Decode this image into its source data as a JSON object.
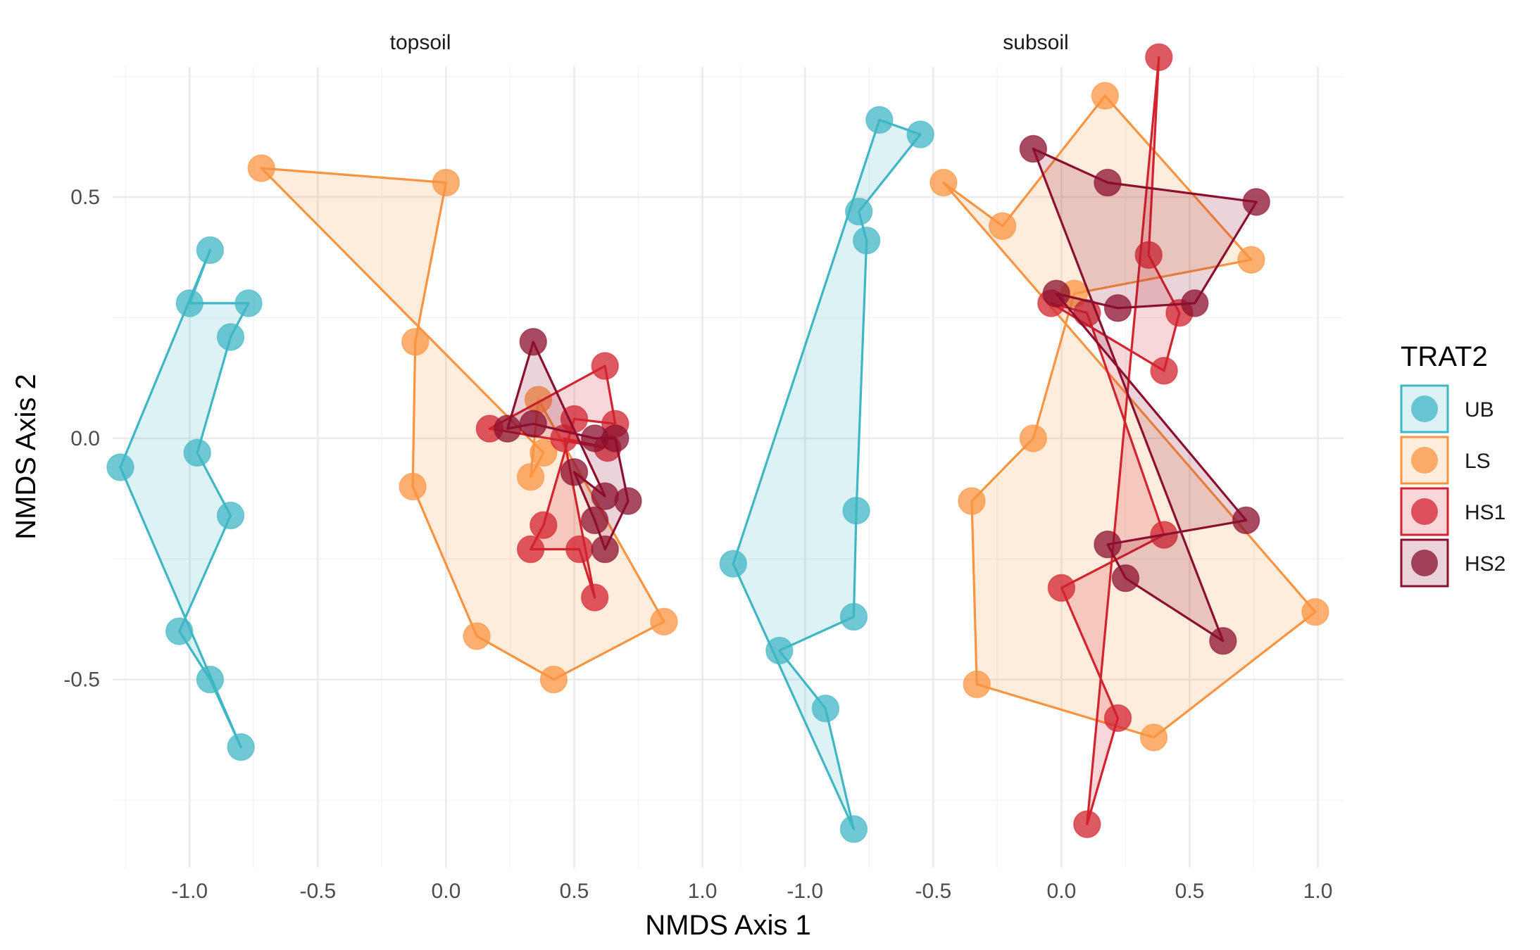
{
  "chart_data": {
    "type": "scatter",
    "xlabel": "NMDS Axis 1",
    "ylabel": "NMDS Axis 2",
    "xlim": [
      -1.3,
      1.1
    ],
    "ylim": [
      -0.89,
      0.77
    ],
    "x_ticks": [
      -1.0,
      -0.5,
      0.0,
      0.5,
      1.0
    ],
    "x_tick_labels": [
      "-1.0",
      "-0.5",
      "0.0",
      "0.5",
      "1.0"
    ],
    "y_ticks": [
      -0.5,
      0.0,
      0.5
    ],
    "y_tick_labels": [
      "-0.5",
      "0.0",
      "0.5"
    ],
    "grid": true,
    "legend": {
      "title": "TRAT2",
      "position": "right",
      "entries": [
        "UB",
        "LS",
        "HS1",
        "HS2"
      ]
    },
    "colors": {
      "UB": "#3fb6c4",
      "LS": "#fb9440",
      "HS1": "#d2232f",
      "HS2": "#8b0f2e"
    },
    "panels": [
      {
        "name": "topsoil",
        "series": [
          {
            "name": "UB",
            "points": [
              [
                -1.27,
                -0.06
              ],
              [
                -0.92,
                0.39
              ],
              [
                -1.0,
                0.28
              ],
              [
                -0.77,
                0.28
              ],
              [
                -0.84,
                0.21
              ],
              [
                -0.97,
                -0.03
              ],
              [
                -0.84,
                -0.16
              ],
              [
                -1.04,
                -0.4
              ],
              [
                -0.92,
                -0.5
              ],
              [
                -0.8,
                -0.64
              ]
            ]
          },
          {
            "name": "LS",
            "points": [
              [
                -0.72,
                0.56
              ],
              [
                0.0,
                0.53
              ],
              [
                -0.12,
                0.2
              ],
              [
                -0.13,
                -0.1
              ],
              [
                0.12,
                -0.41
              ],
              [
                0.42,
                -0.5
              ],
              [
                0.85,
                -0.38
              ],
              [
                0.36,
                0.08
              ],
              [
                0.33,
                -0.08
              ],
              [
                0.38,
                -0.03
              ]
            ]
          },
          {
            "name": "HS1",
            "points": [
              [
                0.17,
                0.02
              ],
              [
                0.62,
                0.15
              ],
              [
                0.66,
                0.03
              ],
              [
                0.5,
                0.04
              ],
              [
                0.38,
                -0.18
              ],
              [
                0.33,
                -0.23
              ],
              [
                0.52,
                -0.23
              ],
              [
                0.58,
                -0.33
              ],
              [
                0.46,
                0.0
              ],
              [
                0.63,
                -0.02
              ]
            ]
          },
          {
            "name": "HS2",
            "points": [
              [
                0.34,
                0.2
              ],
              [
                0.24,
                0.02
              ],
              [
                0.34,
                0.03
              ],
              [
                0.58,
                0.0
              ],
              [
                0.66,
                0.0
              ],
              [
                0.71,
                -0.13
              ],
              [
                0.62,
                -0.23
              ],
              [
                0.58,
                -0.17
              ],
              [
                0.5,
                -0.07
              ],
              [
                0.62,
                -0.12
              ]
            ]
          }
        ]
      },
      {
        "name": "subsoil",
        "series": [
          {
            "name": "UB",
            "points": [
              [
                -1.28,
                -0.26
              ],
              [
                -0.71,
                0.66
              ],
              [
                -0.55,
                0.63
              ],
              [
                -0.79,
                0.47
              ],
              [
                -0.76,
                0.41
              ],
              [
                -0.8,
                -0.15
              ],
              [
                -0.81,
                -0.37
              ],
              [
                -1.1,
                -0.44
              ],
              [
                -0.92,
                -0.56
              ],
              [
                -0.81,
                -0.81
              ]
            ]
          },
          {
            "name": "LS",
            "points": [
              [
                -0.46,
                0.53
              ],
              [
                -0.23,
                0.44
              ],
              [
                0.17,
                0.71
              ],
              [
                0.74,
                0.37
              ],
              [
                0.05,
                0.3
              ],
              [
                -0.11,
                0.0
              ],
              [
                -0.35,
                -0.13
              ],
              [
                -0.33,
                -0.51
              ],
              [
                0.36,
                -0.62
              ],
              [
                0.99,
                -0.36
              ]
            ]
          },
          {
            "name": "HS1",
            "points": [
              [
                0.38,
                0.79
              ],
              [
                0.34,
                0.38
              ],
              [
                0.46,
                0.26
              ],
              [
                0.4,
                0.14
              ],
              [
                -0.04,
                0.28
              ],
              [
                0.1,
                0.26
              ],
              [
                0.4,
                -0.2
              ],
              [
                0.0,
                -0.31
              ],
              [
                0.22,
                -0.58
              ],
              [
                0.1,
                -0.8
              ]
            ]
          },
          {
            "name": "HS2",
            "points": [
              [
                -0.11,
                0.6
              ],
              [
                0.18,
                0.53
              ],
              [
                0.76,
                0.49
              ],
              [
                0.52,
                0.28
              ],
              [
                0.22,
                0.27
              ],
              [
                -0.02,
                0.3
              ],
              [
                0.72,
                -0.17
              ],
              [
                0.18,
                -0.22
              ],
              [
                0.25,
                -0.29
              ],
              [
                0.63,
                -0.42
              ]
            ]
          }
        ]
      }
    ]
  }
}
